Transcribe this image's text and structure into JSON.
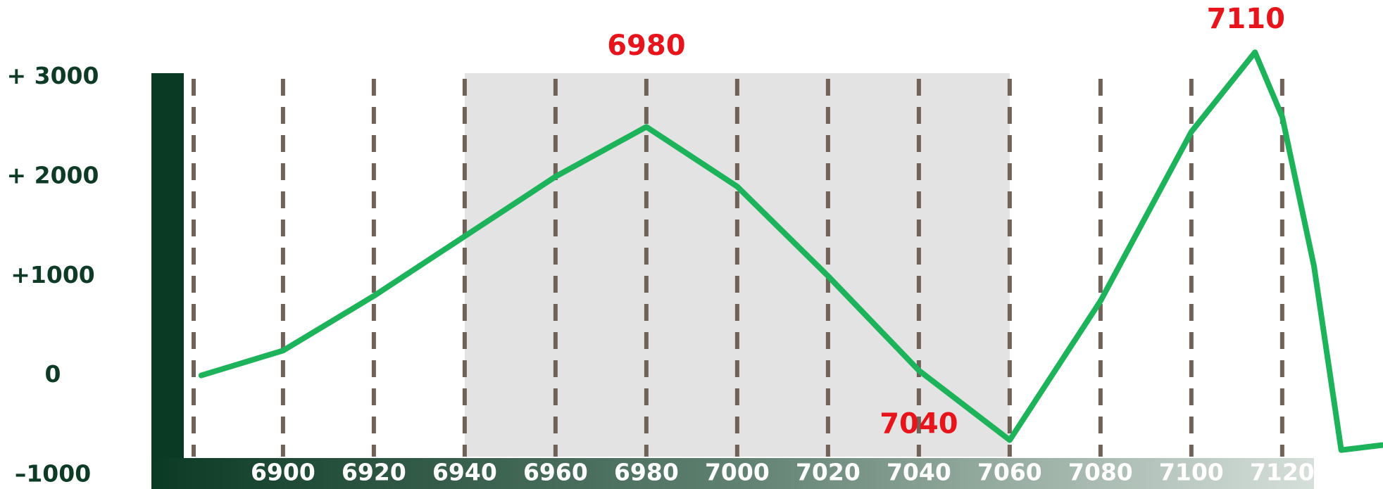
{
  "chart_data": {
    "type": "line",
    "x": [
      6882,
      6900,
      6920,
      6940,
      6960,
      6980,
      7000,
      7020,
      7040,
      7060,
      7080,
      7100,
      7114,
      7120,
      7127,
      7133,
      7142
    ],
    "values": [
      0,
      250,
      800,
      1400,
      2000,
      2500,
      1900,
      1000,
      50,
      -650,
      750,
      2450,
      3250,
      2600,
      1100,
      -750,
      -700
    ],
    "color": "#1db35a",
    "xlim": [
      6878,
      7127
    ],
    "ylim": [
      -1000,
      3000
    ],
    "xticks": [
      6900,
      6920,
      6940,
      6960,
      6980,
      7000,
      7020,
      7040,
      7060,
      7080,
      7100,
      7120
    ],
    "yticks": [
      {
        "value": 3000,
        "label": "+ 3000"
      },
      {
        "value": 2000,
        "label": "+ 2000"
      },
      {
        "value": 1000,
        "label": "+1000"
      },
      0,
      {
        "value": -1000,
        "label": "–1000"
      }
    ],
    "shaded_range": [
      6940,
      7060
    ],
    "grid": true,
    "annotations": [
      {
        "text": "6980",
        "x": 6980,
        "y": 3300,
        "color": "#e8141c"
      },
      {
        "text": "7040",
        "x": 7040,
        "y": -500,
        "color": "#e8141c"
      },
      {
        "text": "7110",
        "x": 7112,
        "y": 3570,
        "color": "#e8141c"
      }
    ]
  }
}
